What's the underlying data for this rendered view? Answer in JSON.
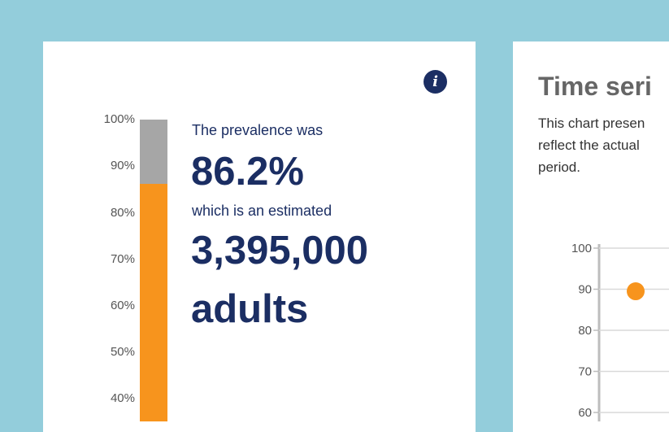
{
  "prevalence_card": {
    "info_icon_glyph": "i",
    "scale_labels": [
      "100%",
      "90%",
      "80%",
      "70%",
      "60%",
      "50%",
      "40%"
    ],
    "prevalence_value_pct": 86.2,
    "line1": "The prevalence was",
    "value_text": "86.2%",
    "line2": "which is an estimated",
    "count_text": "3,395,000",
    "count_unit": "adults",
    "colors": {
      "fill": "#f7941d",
      "remainder": "#a6a6a6",
      "text": "#1b2e63"
    }
  },
  "time_series_card": {
    "title": "Time seri",
    "description_lines": [
      "This chart presen",
      "reflect the actual",
      "period."
    ],
    "chart_data": {
      "type": "scatter",
      "y_ticks": [
        "100",
        "90",
        "80",
        "70",
        "60"
      ],
      "ylim": [
        60,
        100
      ],
      "points": [
        {
          "y": 89.5
        }
      ],
      "grid": true,
      "point_color": "#f7941d"
    }
  }
}
